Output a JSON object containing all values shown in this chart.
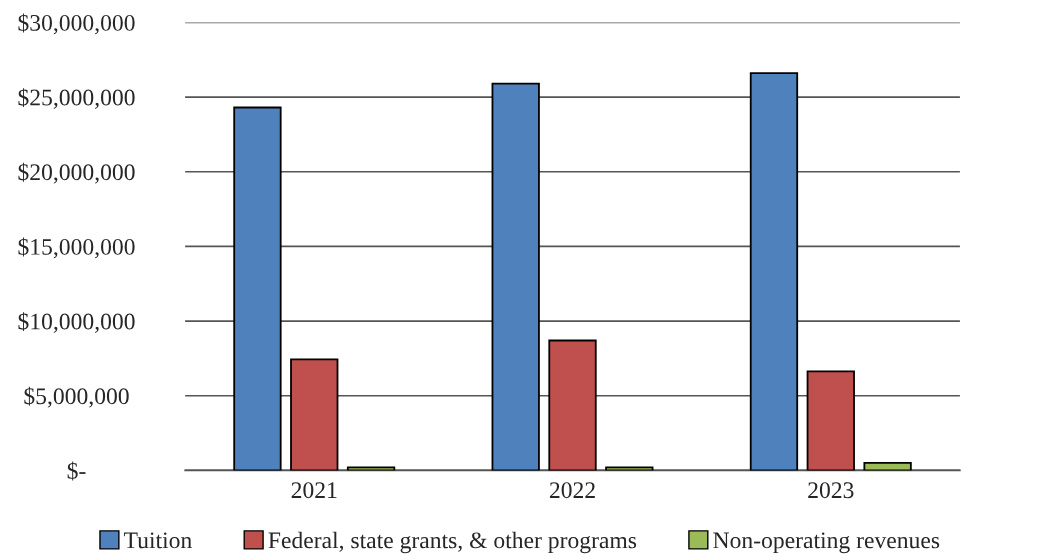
{
  "chart_data": {
    "type": "bar",
    "categories": [
      "2021",
      "2022",
      "2023"
    ],
    "series": [
      {
        "name": "Tuition",
        "color": "#4f81bd",
        "values": [
          24300000,
          25900000,
          26600000
        ]
      },
      {
        "name": "Federal, state grants, & other programs",
        "color": "#c0504d",
        "values": [
          7430000,
          8700000,
          6630000
        ]
      },
      {
        "name": "Non-operating revenues",
        "color": "#9bbb59",
        "values": [
          200000,
          200000,
          500000
        ]
      }
    ],
    "ylim": [
      0,
      30000000
    ],
    "yticks": [
      {
        "value": 0,
        "label": "$-"
      },
      {
        "value": 5000000,
        "label": "$5,000,000"
      },
      {
        "value": 10000000,
        "label": "$10,000,000"
      },
      {
        "value": 15000000,
        "label": "$15,000,000"
      },
      {
        "value": 20000000,
        "label": "$20,000,000"
      },
      {
        "value": 25000000,
        "label": "$25,000,000"
      },
      {
        "value": 30000000,
        "label": "$30,000,000"
      }
    ],
    "grid": "y",
    "legend": "bottom"
  }
}
